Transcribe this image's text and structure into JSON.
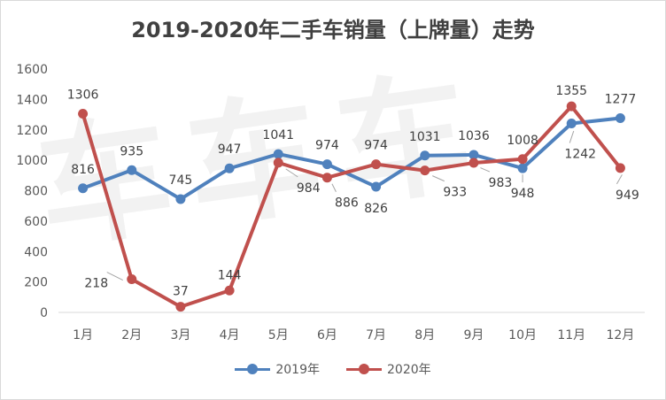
{
  "chart_data": {
    "type": "line",
    "title": "2019-2020年二手车销量（上牌量）走势",
    "categories": [
      "1月",
      "2月",
      "3月",
      "4月",
      "5月",
      "6月",
      "7月",
      "8月",
      "9月",
      "10月",
      "11月",
      "12月"
    ],
    "ylim": [
      0,
      1600
    ],
    "yticks": [
      0,
      200,
      400,
      600,
      800,
      1000,
      1200,
      1400,
      1600
    ],
    "grid": false,
    "legend_position": "bottom",
    "series": [
      {
        "name": "2019年",
        "color": "#4f81bd",
        "values": [
          816,
          935,
          745,
          947,
          1041,
          974,
          826,
          1031,
          1036,
          948,
          1242,
          1277
        ]
      },
      {
        "name": "2020年",
        "color": "#c0504d",
        "values": [
          1306,
          218,
          37,
          144,
          984,
          886,
          974,
          933,
          983,
          1008,
          1355,
          949
        ]
      }
    ]
  },
  "watermark": "车车车"
}
